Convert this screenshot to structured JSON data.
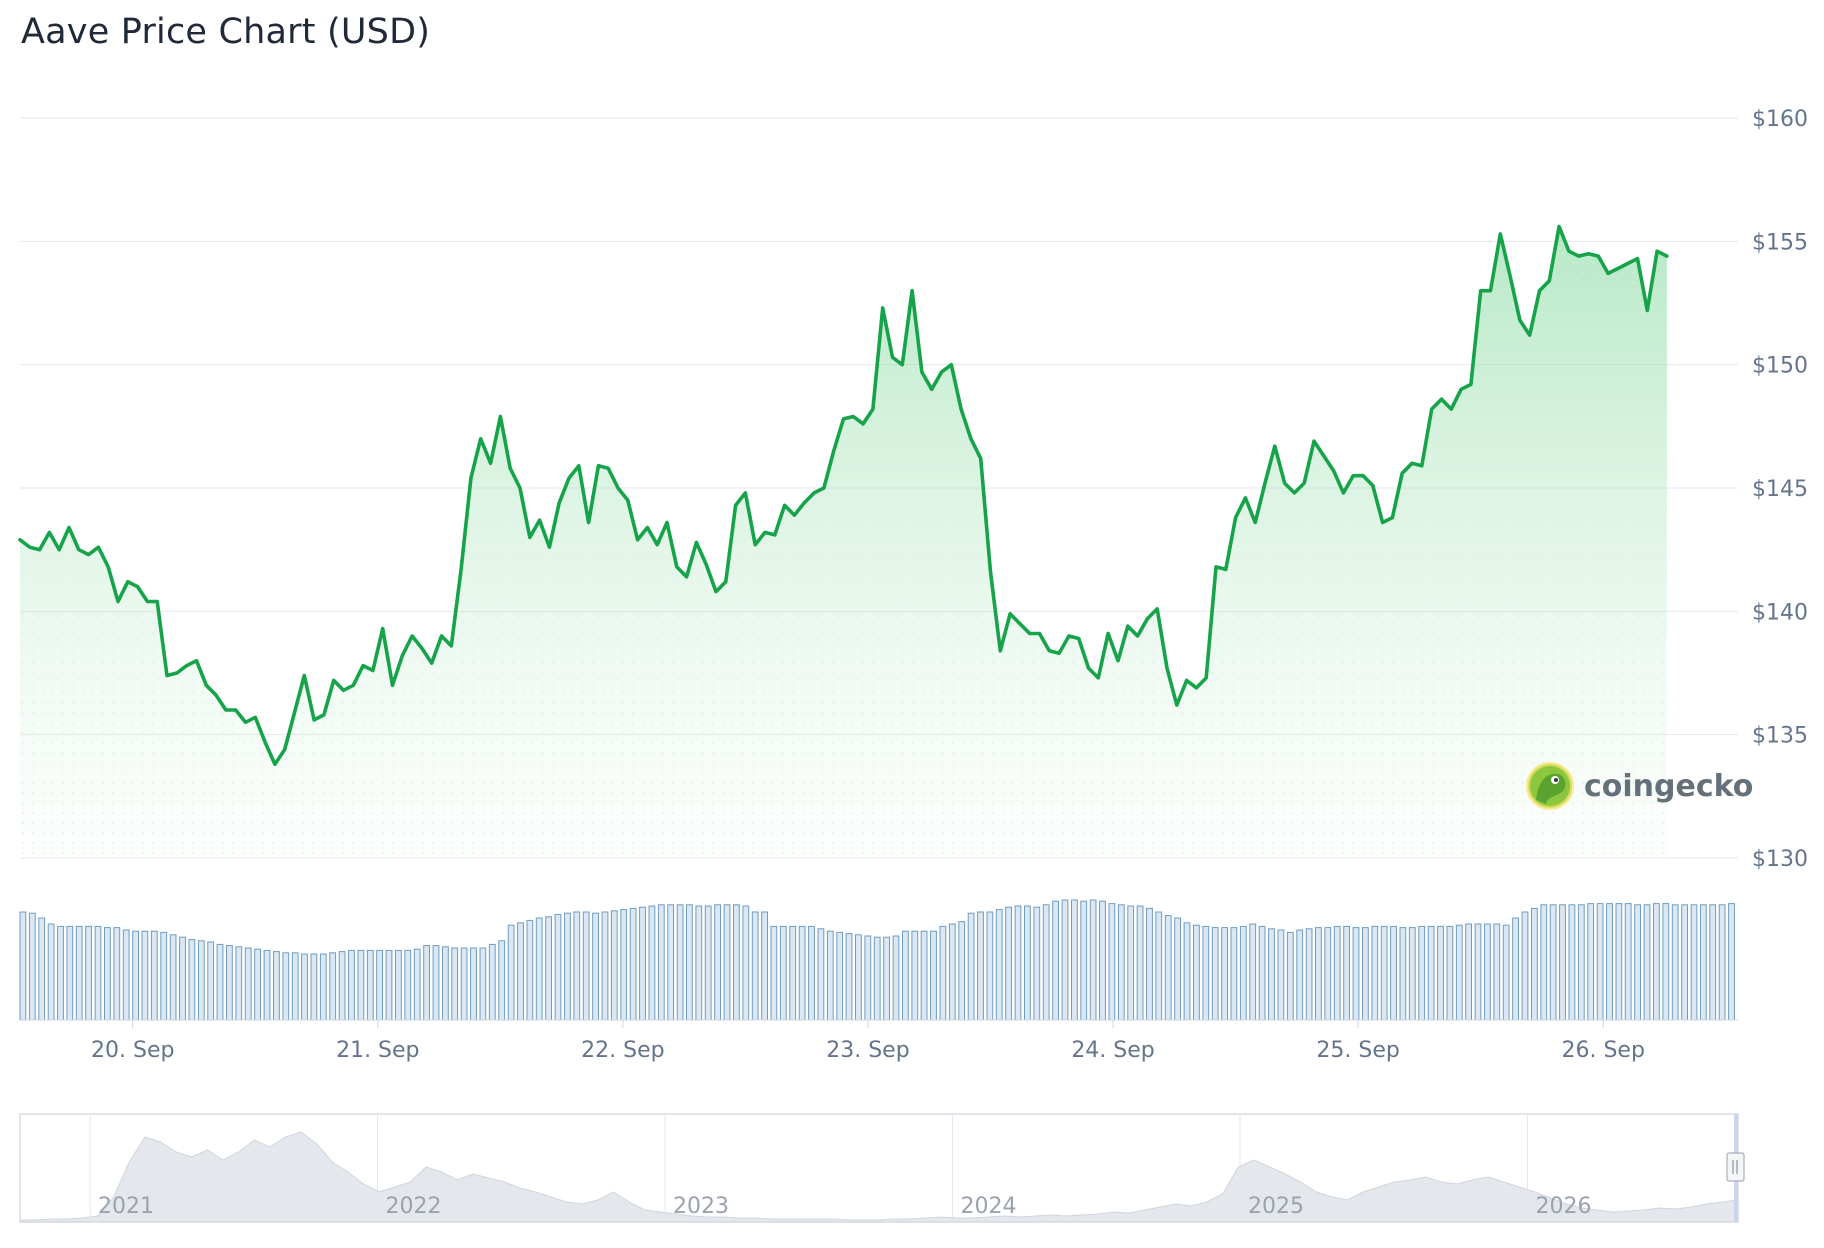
{
  "title": "Aave Price Chart (USD)",
  "watermark": "coingecko",
  "colors": {
    "line": "#16a34a",
    "area_top": "#86d99f",
    "volume_fill": "#dbe7f2",
    "volume_stroke": "#6f9dc0",
    "grid": "#e5e7eb",
    "navigator_area": "#e4e8ed"
  },
  "chart_data": {
    "type": "line",
    "ylim": [
      130,
      160
    ],
    "y_ticks": [
      "$160",
      "$155",
      "$150",
      "$145",
      "$140",
      "$135",
      "$130"
    ],
    "y_tick_values": [
      160,
      155,
      150,
      145,
      140,
      135,
      130
    ],
    "x_ticks": [
      "20. Sep",
      "21. Sep",
      "22. Sep",
      "23. Sep",
      "24. Sep",
      "25. Sep",
      "26. Sep"
    ],
    "x_tick_days": [
      20,
      21,
      22,
      23,
      24,
      25,
      26
    ],
    "x_range_days": [
      19.54,
      26.55
    ],
    "grid": true,
    "price": [
      [
        19.54,
        142.9
      ],
      [
        19.58,
        142.6
      ],
      [
        19.62,
        142.5
      ],
      [
        19.66,
        143.2
      ],
      [
        19.7,
        142.5
      ],
      [
        19.74,
        143.4
      ],
      [
        19.78,
        142.5
      ],
      [
        19.82,
        142.3
      ],
      [
        19.86,
        142.6
      ],
      [
        19.9,
        141.8
      ],
      [
        19.94,
        140.4
      ],
      [
        19.98,
        141.2
      ],
      [
        20.02,
        141.0
      ],
      [
        20.06,
        140.4
      ],
      [
        20.1,
        140.4
      ],
      [
        20.14,
        137.4
      ],
      [
        20.18,
        137.5
      ],
      [
        20.22,
        137.8
      ],
      [
        20.26,
        138.0
      ],
      [
        20.3,
        137.0
      ],
      [
        20.34,
        136.6
      ],
      [
        20.38,
        136.0
      ],
      [
        20.42,
        136.0
      ],
      [
        20.46,
        135.5
      ],
      [
        20.5,
        135.7
      ],
      [
        20.54,
        134.7
      ],
      [
        20.58,
        133.8
      ],
      [
        20.62,
        134.4
      ],
      [
        20.66,
        135.9
      ],
      [
        20.7,
        137.4
      ],
      [
        20.74,
        135.6
      ],
      [
        20.78,
        135.8
      ],
      [
        20.82,
        137.2
      ],
      [
        20.86,
        136.8
      ],
      [
        20.9,
        137.0
      ],
      [
        20.94,
        137.8
      ],
      [
        20.98,
        137.6
      ],
      [
        21.02,
        139.3
      ],
      [
        21.06,
        137.0
      ],
      [
        21.1,
        138.2
      ],
      [
        21.14,
        139.0
      ],
      [
        21.18,
        138.5
      ],
      [
        21.22,
        137.9
      ],
      [
        21.26,
        139.0
      ],
      [
        21.3,
        138.6
      ],
      [
        21.34,
        141.7
      ],
      [
        21.38,
        145.4
      ],
      [
        21.42,
        147.0
      ],
      [
        21.46,
        146.0
      ],
      [
        21.5,
        147.9
      ],
      [
        21.54,
        145.8
      ],
      [
        21.58,
        145.0
      ],
      [
        21.62,
        143.0
      ],
      [
        21.66,
        143.7
      ],
      [
        21.7,
        142.6
      ],
      [
        21.74,
        144.4
      ],
      [
        21.78,
        145.4
      ],
      [
        21.82,
        145.9
      ],
      [
        21.86,
        143.6
      ],
      [
        21.9,
        145.9
      ],
      [
        21.94,
        145.8
      ],
      [
        21.98,
        145.0
      ],
      [
        22.02,
        144.5
      ],
      [
        22.06,
        142.9
      ],
      [
        22.1,
        143.4
      ],
      [
        22.14,
        142.7
      ],
      [
        22.18,
        143.6
      ],
      [
        22.22,
        141.8
      ],
      [
        22.26,
        141.4
      ],
      [
        22.3,
        142.8
      ],
      [
        22.34,
        141.9
      ],
      [
        22.38,
        140.8
      ],
      [
        22.42,
        141.2
      ],
      [
        22.46,
        144.3
      ],
      [
        22.5,
        144.8
      ],
      [
        22.54,
        142.7
      ],
      [
        22.58,
        143.2
      ],
      [
        22.62,
        143.1
      ],
      [
        22.66,
        144.3
      ],
      [
        22.7,
        143.9
      ],
      [
        22.74,
        144.4
      ],
      [
        22.78,
        144.8
      ],
      [
        22.82,
        145.0
      ],
      [
        22.86,
        146.5
      ],
      [
        22.9,
        147.8
      ],
      [
        22.94,
        147.9
      ],
      [
        22.98,
        147.6
      ],
      [
        23.02,
        148.2
      ],
      [
        23.06,
        152.3
      ],
      [
        23.1,
        150.3
      ],
      [
        23.14,
        150.0
      ],
      [
        23.18,
        153.0
      ],
      [
        23.22,
        149.7
      ],
      [
        23.26,
        149.0
      ],
      [
        23.3,
        149.7
      ],
      [
        23.34,
        150.0
      ],
      [
        23.38,
        148.2
      ],
      [
        23.42,
        147.0
      ],
      [
        23.46,
        146.2
      ],
      [
        23.5,
        141.6
      ],
      [
        23.54,
        138.4
      ],
      [
        23.58,
        139.9
      ],
      [
        23.62,
        139.5
      ],
      [
        23.66,
        139.1
      ],
      [
        23.7,
        139.1
      ],
      [
        23.74,
        138.4
      ],
      [
        23.78,
        138.3
      ],
      [
        23.82,
        139.0
      ],
      [
        23.86,
        138.9
      ],
      [
        23.9,
        137.7
      ],
      [
        23.94,
        137.3
      ],
      [
        23.98,
        139.1
      ],
      [
        24.02,
        138.0
      ],
      [
        24.06,
        139.4
      ],
      [
        24.1,
        139.0
      ],
      [
        24.14,
        139.7
      ],
      [
        24.18,
        140.1
      ],
      [
        24.22,
        137.7
      ],
      [
        24.26,
        136.2
      ],
      [
        24.3,
        137.2
      ],
      [
        24.34,
        136.9
      ],
      [
        24.38,
        137.3
      ],
      [
        24.42,
        141.8
      ],
      [
        24.46,
        141.7
      ],
      [
        24.5,
        143.8
      ],
      [
        24.54,
        144.6
      ],
      [
        24.58,
        143.6
      ],
      [
        24.62,
        145.2
      ],
      [
        24.66,
        146.7
      ],
      [
        24.7,
        145.2
      ],
      [
        24.74,
        144.8
      ],
      [
        24.78,
        145.2
      ],
      [
        24.82,
        146.9
      ],
      [
        24.86,
        146.3
      ],
      [
        24.9,
        145.7
      ],
      [
        24.94,
        144.8
      ],
      [
        24.98,
        145.5
      ],
      [
        25.02,
        145.5
      ],
      [
        25.06,
        145.1
      ],
      [
        25.1,
        143.6
      ],
      [
        25.14,
        143.8
      ],
      [
        25.18,
        145.6
      ],
      [
        25.22,
        146.0
      ],
      [
        25.26,
        145.9
      ],
      [
        25.3,
        148.2
      ],
      [
        25.34,
        148.6
      ],
      [
        25.38,
        148.2
      ],
      [
        25.42,
        149.0
      ],
      [
        25.46,
        149.2
      ],
      [
        25.5,
        153.0
      ],
      [
        25.54,
        153.0
      ],
      [
        25.58,
        155.3
      ],
      [
        25.62,
        153.6
      ],
      [
        25.66,
        151.8
      ],
      [
        25.7,
        151.2
      ],
      [
        25.74,
        153.0
      ],
      [
        25.78,
        153.4
      ],
      [
        25.82,
        155.6
      ],
      [
        25.86,
        154.6
      ],
      [
        25.9,
        154.4
      ],
      [
        25.94,
        154.5
      ],
      [
        25.98,
        154.4
      ],
      [
        26.02,
        153.7
      ],
      [
        26.06,
        153.9
      ],
      [
        26.1,
        154.1
      ],
      [
        26.14,
        154.3
      ],
      [
        26.18,
        152.2
      ],
      [
        26.22,
        154.6
      ],
      [
        26.26,
        154.4
      ]
    ],
    "volume_ratio": [
      0.9,
      0.89,
      0.85,
      0.8,
      0.78,
      0.78,
      0.78,
      0.78,
      0.78,
      0.77,
      0.77,
      0.75,
      0.74,
      0.74,
      0.74,
      0.73,
      0.71,
      0.69,
      0.67,
      0.66,
      0.65,
      0.63,
      0.62,
      0.61,
      0.6,
      0.59,
      0.58,
      0.57,
      0.56,
      0.56,
      0.55,
      0.55,
      0.55,
      0.56,
      0.57,
      0.58,
      0.58,
      0.58,
      0.58,
      0.58,
      0.58,
      0.58,
      0.59,
      0.62,
      0.62,
      0.61,
      0.6,
      0.6,
      0.6,
      0.6,
      0.63,
      0.66,
      0.79,
      0.81,
      0.83,
      0.85,
      0.86,
      0.88,
      0.89,
      0.9,
      0.9,
      0.89,
      0.9,
      0.91,
      0.92,
      0.93,
      0.94,
      0.95,
      0.96,
      0.96,
      0.96,
      0.96,
      0.95,
      0.95,
      0.96,
      0.96,
      0.96,
      0.95,
      0.9,
      0.9,
      0.78,
      0.78,
      0.78,
      0.78,
      0.78,
      0.76,
      0.74,
      0.73,
      0.72,
      0.71,
      0.7,
      0.69,
      0.69,
      0.7,
      0.74,
      0.74,
      0.74,
      0.74,
      0.78,
      0.8,
      0.82,
      0.89,
      0.9,
      0.9,
      0.92,
      0.94,
      0.95,
      0.95,
      0.94,
      0.96,
      0.99,
      1.0,
      1.0,
      0.99,
      1.0,
      0.99,
      0.97,
      0.96,
      0.95,
      0.95,
      0.93,
      0.9,
      0.87,
      0.85,
      0.81,
      0.79,
      0.78,
      0.77,
      0.77,
      0.77,
      0.78,
      0.8,
      0.78,
      0.76,
      0.75,
      0.73,
      0.75,
      0.76,
      0.77,
      0.77,
      0.78,
      0.78,
      0.77,
      0.77,
      0.78,
      0.78,
      0.78,
      0.77,
      0.77,
      0.78,
      0.78,
      0.78,
      0.78,
      0.79,
      0.8,
      0.8,
      0.8,
      0.8,
      0.79,
      0.85,
      0.9,
      0.93,
      0.96,
      0.96,
      0.96,
      0.96,
      0.96,
      0.97,
      0.97,
      0.97,
      0.97,
      0.97,
      0.96,
      0.96,
      0.97,
      0.97,
      0.96,
      0.96,
      0.96,
      0.96,
      0.96,
      0.96,
      0.97
    ],
    "navigator": {
      "x_ticks": [
        "2021",
        "2022",
        "2023",
        "2024",
        "2025",
        "2026"
      ]
    }
  }
}
